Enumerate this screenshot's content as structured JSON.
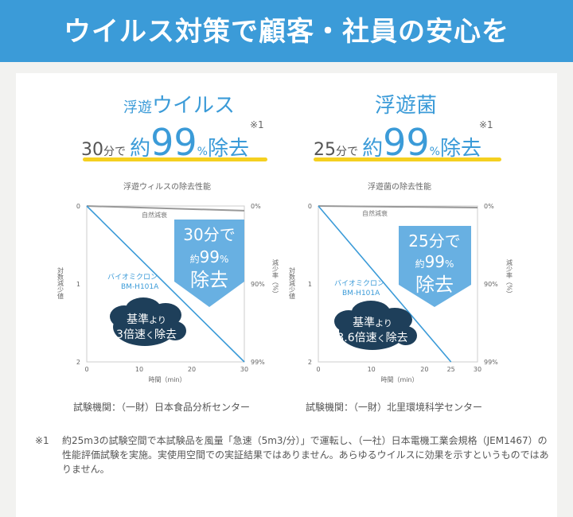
{
  "banner": {
    "title": "ウイルス対策で顧客・社員の安心を"
  },
  "panels": [
    {
      "heading_prefix": "浮遊",
      "heading_main": "ウイルス",
      "claim": {
        "minutes": "30",
        "min_suffix": "分で",
        "approx": "約",
        "pct": "99",
        "pct_sign": "%",
        "tail": "除去"
      },
      "note_mark": "※1",
      "institution": "試験機関：（一財）日本食品分析センター"
    },
    {
      "heading_prefix": "",
      "heading_main": "浮遊菌",
      "claim": {
        "minutes": "25",
        "min_suffix": "分で",
        "approx": "約",
        "pct": "99",
        "pct_sign": "%",
        "tail": "除去"
      },
      "note_mark": "※1",
      "institution": "試験機関：（一財）北里環境科学センター"
    }
  ],
  "footnote": {
    "mark": "※1",
    "text": "約25m3の試験空間で本試験品を風量「急速（5m3/分）」で運転し、（一社）日本電機工業会規格（JEM1467）の性能評価試験を実施。実使用空間での実証結果ではありません。あらゆるウイルスに効果を示すというものではありません。"
  },
  "chart_data": [
    {
      "type": "line",
      "title": "浮遊ウィルスの除去性能",
      "xlabel": "時間（min）",
      "ylabel_left": "対数減少値",
      "ylabel_right": "減少率（%）",
      "xlim": [
        0,
        30
      ],
      "ylim": [
        0,
        2
      ],
      "x_ticks": [
        "0",
        "10",
        "20",
        "30"
      ],
      "y_ticks_left": [
        "0",
        "1",
        "2"
      ],
      "y_ticks_right": [
        "0%",
        "90%",
        "99%"
      ],
      "series": [
        {
          "name": "自然減衰",
          "color": "#999999",
          "x": [
            0,
            30
          ],
          "y": [
            0,
            0.06
          ]
        },
        {
          "name": "バイオミクロン BM-H101A",
          "color": "#3b9bd8",
          "x": [
            0,
            30
          ],
          "y": [
            0,
            2
          ]
        }
      ],
      "callout": {
        "line1": "30分で",
        "line2_a": "約",
        "line2_b": "99",
        "line2_c": "%",
        "line3": "除去"
      },
      "cloud": {
        "line1_a": "基準",
        "line1_b": "より",
        "line2_a": "3倍速",
        "line2_b": "く",
        "line2_c": "除去"
      },
      "series_label": {
        "line1": "バイオミクロン",
        "line2": "BM-H101A"
      }
    },
    {
      "type": "line",
      "title": "浮遊菌の除去性能",
      "xlabel": "時間（min）",
      "ylabel_left": "対数減少値",
      "ylabel_right": "減少率（%）",
      "xlim": [
        0,
        30
      ],
      "ylim": [
        0,
        2
      ],
      "x_ticks": [
        "0",
        "10",
        "20",
        "25",
        "30"
      ],
      "y_ticks_left": [
        "0",
        "1",
        "2"
      ],
      "y_ticks_right": [
        "0%",
        "90%",
        "99%"
      ],
      "series": [
        {
          "name": "自然減衰",
          "color": "#999999",
          "x": [
            0,
            30
          ],
          "y": [
            0,
            0.02
          ]
        },
        {
          "name": "バイオミクロン BM-H101A",
          "color": "#3b9bd8",
          "x": [
            0,
            25
          ],
          "y": [
            0,
            2
          ]
        }
      ],
      "callout": {
        "line1": "25分で",
        "line2_a": "約",
        "line2_b": "99",
        "line2_c": "%",
        "line3": "除去"
      },
      "cloud": {
        "line1_a": "基準",
        "line1_b": "より",
        "line2_a": "3.6倍速",
        "line2_b": "く",
        "line2_c": "除去"
      },
      "series_label": {
        "line1": "バイオミクロン",
        "line2": "BM-H101A"
      }
    }
  ]
}
